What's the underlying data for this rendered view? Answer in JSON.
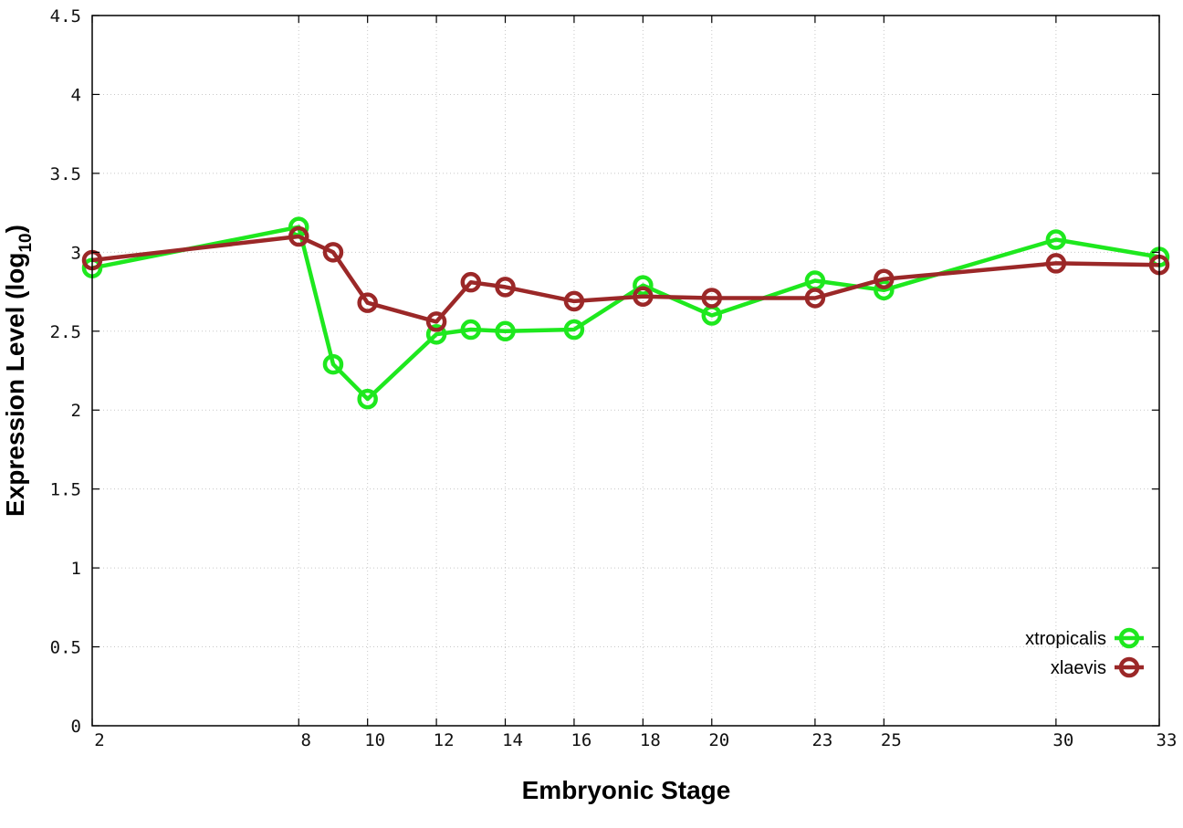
{
  "chart_data": {
    "type": "line",
    "xlabel": "Embryonic Stage",
    "ylabel_main": "Expression Level (log",
    "ylabel_sub": "10",
    "ylabel_close": ")",
    "x_ticks": [
      2,
      8,
      10,
      12,
      14,
      16,
      18,
      20,
      23,
      25,
      30,
      33
    ],
    "x_tick_labels": [
      "2",
      "8",
      "10",
      "12",
      "14",
      "16",
      "18",
      "20",
      "23",
      "25",
      "30",
      "33"
    ],
    "y_ticks": [
      0,
      0.5,
      1,
      1.5,
      2,
      2.5,
      3,
      3.5,
      4,
      4.5
    ],
    "y_tick_labels": [
      "0",
      "0.5",
      "1",
      "1.5",
      "2",
      "2.5",
      "3",
      "3.5",
      "4",
      "4.5"
    ],
    "ylim": [
      0,
      4.5
    ],
    "grid": true,
    "legend_position": "bottom-right",
    "series": [
      {
        "name": "xtropicalis",
        "color": "#1ee81e",
        "x": [
          2,
          8,
          9,
          10,
          12,
          13,
          14,
          16,
          18,
          20,
          23,
          25,
          30,
          33
        ],
        "y": [
          2.9,
          3.16,
          2.29,
          2.07,
          2.48,
          2.51,
          2.5,
          2.51,
          2.79,
          2.6,
          2.82,
          2.76,
          3.08,
          2.97
        ]
      },
      {
        "name": "xlaevis",
        "color": "#9b2828",
        "x": [
          2,
          8,
          9,
          10,
          12,
          13,
          14,
          16,
          18,
          20,
          23,
          25,
          30,
          33
        ],
        "y": [
          2.95,
          3.1,
          3.0,
          2.68,
          2.56,
          2.81,
          2.78,
          2.69,
          2.72,
          2.71,
          2.71,
          2.83,
          2.93,
          2.92
        ]
      }
    ]
  }
}
